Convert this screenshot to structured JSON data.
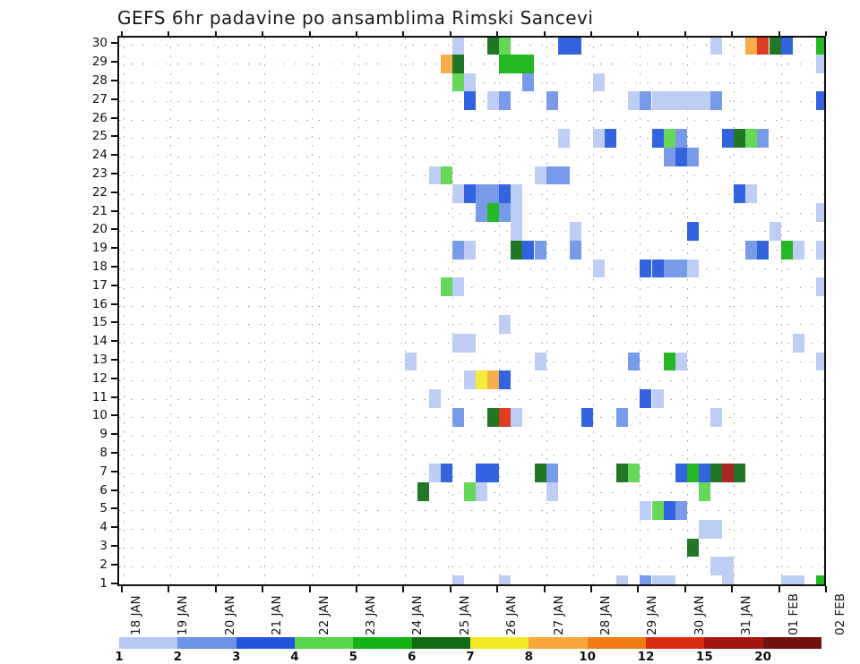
{
  "chart_data": {
    "type": "heatmap",
    "title": "GEFS 6hr padavine po ansamblima Rimski Sancevi",
    "xlabel": "",
    "ylabel": "",
    "x_tick_labels": [
      "18 JAN",
      "19 JAN",
      "20 JAN",
      "21 JAN",
      "22 JAN",
      "23 JAN",
      "24 JAN",
      "25 JAN",
      "26 JAN",
      "27 JAN",
      "28 JAN",
      "29 JAN",
      "30 JAN",
      "31 JAN",
      "01 FEB",
      "02 FEB"
    ],
    "y_tick_labels": [
      "30",
      "29",
      "28",
      "27",
      "26",
      "25",
      "24",
      "23",
      "22",
      "21",
      "20",
      "19",
      "18",
      "17",
      "16",
      "15",
      "14",
      "13",
      "12",
      "11",
      "10",
      "9",
      "8",
      "7",
      "6",
      "5",
      "4",
      "3",
      "2",
      "1"
    ],
    "y_range": [
      1,
      30
    ],
    "grid": "dotted",
    "legend_position": "bottom",
    "legend_labels": [
      "1",
      "2",
      "3",
      "4",
      "5",
      "6",
      "7",
      "8",
      "10",
      "12",
      "15",
      "20"
    ],
    "legend_colors": [
      "#b7c9f2",
      "#6b93e6",
      "#2356dd",
      "#58d54c",
      "#12b212",
      "#0e6b14",
      "#f5e927",
      "#f7a63a",
      "#ef7d14",
      "#da2c10",
      "#a51510",
      "#701210"
    ],
    "level_colors": {
      "1": "#b7c9f2",
      "2": "#6b93e6",
      "3": "#2356dd",
      "4": "#58d54c",
      "5": "#12b212",
      "6": "#0e6b14",
      "7": "#f5e927",
      "8": "#f7a63a",
      "10": "#ef7d14",
      "12": "#da2c10",
      "15": "#a51510",
      "20": "#701210"
    },
    "cell_format": [
      "member_row",
      "day_index",
      "six_hour_period",
      "precip_level_mm"
    ],
    "cells": [
      [
        30,
        7,
        0,
        1
      ],
      [
        30,
        7,
        3,
        6
      ],
      [
        30,
        8,
        0,
        4
      ],
      [
        30,
        9,
        1,
        3
      ],
      [
        30,
        9,
        2,
        3
      ],
      [
        30,
        12,
        2,
        1
      ],
      [
        30,
        13,
        1,
        8
      ],
      [
        30,
        13,
        2,
        12
      ],
      [
        30,
        13,
        3,
        6
      ],
      [
        30,
        14,
        0,
        3
      ],
      [
        30,
        14,
        3,
        5
      ],
      [
        29,
        6,
        3,
        8
      ],
      [
        29,
        7,
        0,
        6
      ],
      [
        29,
        8,
        0,
        5
      ],
      [
        29,
        8,
        1,
        5
      ],
      [
        29,
        8,
        2,
        5
      ],
      [
        29,
        14,
        3,
        1
      ],
      [
        28,
        7,
        0,
        4
      ],
      [
        28,
        7,
        1,
        1
      ],
      [
        28,
        8,
        2,
        2
      ],
      [
        28,
        10,
        0,
        1
      ],
      [
        27,
        7,
        1,
        3
      ],
      [
        27,
        7,
        3,
        1
      ],
      [
        27,
        8,
        0,
        2
      ],
      [
        27,
        9,
        0,
        2
      ],
      [
        27,
        10,
        3,
        1
      ],
      [
        27,
        11,
        0,
        2
      ],
      [
        27,
        11,
        1,
        1
      ],
      [
        27,
        11,
        2,
        1
      ],
      [
        27,
        11,
        3,
        1
      ],
      [
        27,
        12,
        0,
        1
      ],
      [
        27,
        12,
        1,
        1
      ],
      [
        27,
        12,
        2,
        2
      ],
      [
        27,
        14,
        3,
        3
      ],
      [
        25,
        9,
        1,
        1
      ],
      [
        25,
        10,
        0,
        1
      ],
      [
        25,
        10,
        1,
        3
      ],
      [
        25,
        11,
        1,
        3
      ],
      [
        25,
        11,
        2,
        4
      ],
      [
        25,
        11,
        3,
        2
      ],
      [
        25,
        12,
        3,
        3
      ],
      [
        25,
        13,
        0,
        6
      ],
      [
        25,
        13,
        1,
        4
      ],
      [
        25,
        13,
        2,
        2
      ],
      [
        24,
        11,
        2,
        2
      ],
      [
        24,
        11,
        3,
        3
      ],
      [
        24,
        12,
        0,
        2
      ],
      [
        23,
        6,
        2,
        1
      ],
      [
        23,
        6,
        3,
        4
      ],
      [
        23,
        8,
        3,
        1
      ],
      [
        23,
        9,
        0,
        2
      ],
      [
        23,
        9,
        1,
        2
      ],
      [
        22,
        7,
        0,
        1
      ],
      [
        22,
        7,
        1,
        3
      ],
      [
        22,
        7,
        2,
        2
      ],
      [
        22,
        7,
        3,
        2
      ],
      [
        22,
        8,
        0,
        3
      ],
      [
        22,
        8,
        1,
        1
      ],
      [
        22,
        13,
        0,
        3
      ],
      [
        22,
        13,
        1,
        1
      ],
      [
        21,
        7,
        2,
        2
      ],
      [
        21,
        7,
        3,
        5
      ],
      [
        21,
        8,
        0,
        2
      ],
      [
        21,
        8,
        1,
        1
      ],
      [
        21,
        14,
        3,
        1
      ],
      [
        20,
        8,
        1,
        1
      ],
      [
        20,
        9,
        2,
        1
      ],
      [
        20,
        12,
        0,
        3
      ],
      [
        20,
        13,
        3,
        1
      ],
      [
        19,
        7,
        0,
        2
      ],
      [
        19,
        7,
        1,
        1
      ],
      [
        19,
        8,
        1,
        6
      ],
      [
        19,
        8,
        2,
        3
      ],
      [
        19,
        8,
        3,
        2
      ],
      [
        19,
        9,
        2,
        2
      ],
      [
        19,
        13,
        1,
        2
      ],
      [
        19,
        13,
        2,
        3
      ],
      [
        19,
        14,
        0,
        5
      ],
      [
        19,
        14,
        1,
        1
      ],
      [
        19,
        14,
        3,
        1
      ],
      [
        18,
        10,
        0,
        1
      ],
      [
        18,
        11,
        0,
        3
      ],
      [
        18,
        11,
        1,
        3
      ],
      [
        18,
        11,
        2,
        2
      ],
      [
        18,
        11,
        3,
        2
      ],
      [
        18,
        12,
        0,
        1
      ],
      [
        17,
        6,
        3,
        4
      ],
      [
        17,
        7,
        0,
        1
      ],
      [
        17,
        14,
        3,
        1
      ],
      [
        15,
        8,
        0,
        1
      ],
      [
        14,
        7,
        0,
        1
      ],
      [
        14,
        7,
        1,
        1
      ],
      [
        14,
        14,
        1,
        1
      ],
      [
        13,
        6,
        0,
        1
      ],
      [
        13,
        8,
        3,
        1
      ],
      [
        13,
        10,
        3,
        2
      ],
      [
        13,
        11,
        2,
        5
      ],
      [
        13,
        11,
        3,
        1
      ],
      [
        13,
        14,
        3,
        1
      ],
      [
        12,
        7,
        1,
        1
      ],
      [
        12,
        7,
        2,
        7
      ],
      [
        12,
        7,
        3,
        8
      ],
      [
        12,
        8,
        0,
        3
      ],
      [
        11,
        6,
        2,
        1
      ],
      [
        11,
        11,
        0,
        3
      ],
      [
        11,
        11,
        1,
        1
      ],
      [
        10,
        7,
        0,
        2
      ],
      [
        10,
        7,
        3,
        6
      ],
      [
        10,
        8,
        0,
        12
      ],
      [
        10,
        8,
        1,
        1
      ],
      [
        10,
        9,
        3,
        3
      ],
      [
        10,
        10,
        2,
        2
      ],
      [
        10,
        12,
        2,
        1
      ],
      [
        7,
        6,
        2,
        1
      ],
      [
        7,
        6,
        3,
        3
      ],
      [
        7,
        7,
        2,
        3
      ],
      [
        7,
        7,
        3,
        3
      ],
      [
        7,
        8,
        3,
        6
      ],
      [
        7,
        9,
        0,
        2
      ],
      [
        7,
        10,
        2,
        6
      ],
      [
        7,
        10,
        3,
        4
      ],
      [
        7,
        11,
        3,
        3
      ],
      [
        7,
        12,
        0,
        5
      ],
      [
        7,
        12,
        1,
        3
      ],
      [
        7,
        12,
        2,
        6
      ],
      [
        7,
        12,
        3,
        15
      ],
      [
        7,
        13,
        0,
        6
      ],
      [
        6,
        6,
        1,
        6
      ],
      [
        6,
        7,
        1,
        4
      ],
      [
        6,
        7,
        2,
        1
      ],
      [
        6,
        9,
        0,
        1
      ],
      [
        6,
        12,
        1,
        4
      ],
      [
        5,
        11,
        0,
        1
      ],
      [
        5,
        11,
        1,
        4
      ],
      [
        5,
        11,
        2,
        3
      ],
      [
        5,
        11,
        3,
        2
      ],
      [
        4,
        12,
        1,
        1
      ],
      [
        4,
        12,
        2,
        1
      ],
      [
        3,
        12,
        0,
        6
      ],
      [
        2,
        12,
        2,
        1
      ],
      [
        2,
        12,
        3,
        1
      ],
      [
        1,
        7,
        0,
        1
      ],
      [
        1,
        8,
        0,
        1
      ],
      [
        1,
        10,
        2,
        1
      ],
      [
        1,
        11,
        0,
        2
      ],
      [
        1,
        11,
        1,
        1
      ],
      [
        1,
        11,
        2,
        1
      ],
      [
        1,
        12,
        3,
        1
      ],
      [
        1,
        14,
        0,
        1
      ],
      [
        1,
        14,
        1,
        1
      ],
      [
        1,
        14,
        3,
        5
      ]
    ]
  }
}
